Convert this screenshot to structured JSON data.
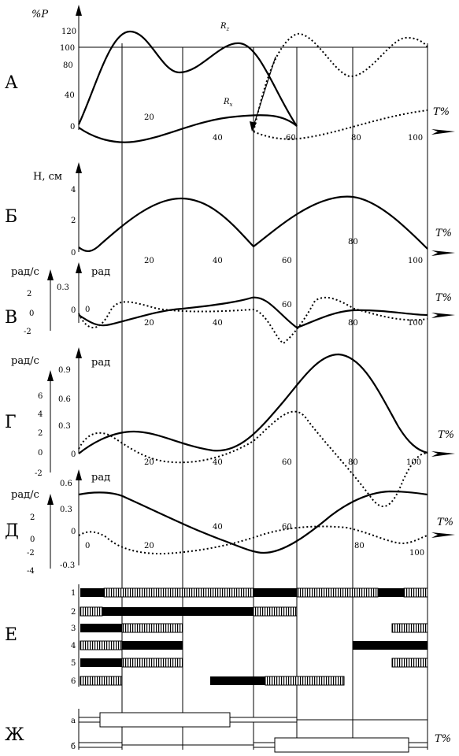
{
  "panels": {
    "a": {
      "letter": "А",
      "y_unit": "%P",
      "y_ticks_left": [
        "120",
        "100",
        "80",
        "40",
        "0"
      ],
      "x_ticks": [
        "20",
        "40",
        "60",
        "80",
        "100"
      ],
      "x_axis_label": "T%",
      "curve_labels": [
        "R_z",
        "R_x"
      ]
    },
    "b": {
      "letter": "Б",
      "y_unit": "H, см",
      "y_ticks_left": [
        "4",
        "2",
        "0"
      ],
      "x_ticks": [
        "20",
        "40",
        "60",
        "80",
        "100"
      ],
      "x_axis_label": "T%"
    },
    "v": {
      "letter": "В",
      "left_unit": "рад/с",
      "right_unit": "рад",
      "y_ticks_left": [
        "2",
        "0",
        "-2"
      ],
      "y_ticks_right": [
        "0.3",
        "0"
      ],
      "x_ticks": [
        "0",
        "20",
        "40",
        "60",
        "80",
        "100"
      ],
      "x_axis_label": "T%"
    },
    "g": {
      "letter": "Г",
      "left_unit": "рад/с",
      "right_unit": "рад",
      "y_ticks_left": [
        "6",
        "4",
        "2",
        "0",
        "-2"
      ],
      "y_ticks_right": [
        "0.9",
        "0.6",
        "0.3",
        "0"
      ],
      "x_ticks": [
        "20",
        "40",
        "60",
        "80",
        "100"
      ],
      "x_axis_label": "T%"
    },
    "d": {
      "letter": "Д",
      "left_unit": "рад/с",
      "right_unit": "рад",
      "y_ticks_left": [
        "2",
        "0",
        "-2",
        "-4"
      ],
      "y_ticks_right": [
        "0.6",
        "0.3",
        "0",
        "-0.3"
      ],
      "x_ticks": [
        "0",
        "20",
        "40",
        "60",
        "80",
        "100"
      ],
      "x_axis_label": "T%"
    },
    "e": {
      "letter": "Е",
      "rows": [
        "1",
        "2",
        "3",
        "4",
        "5",
        "6"
      ]
    },
    "zh": {
      "letter": "Ж",
      "rows": [
        "а",
        "б"
      ],
      "x_axis_label": "T%"
    }
  }
}
